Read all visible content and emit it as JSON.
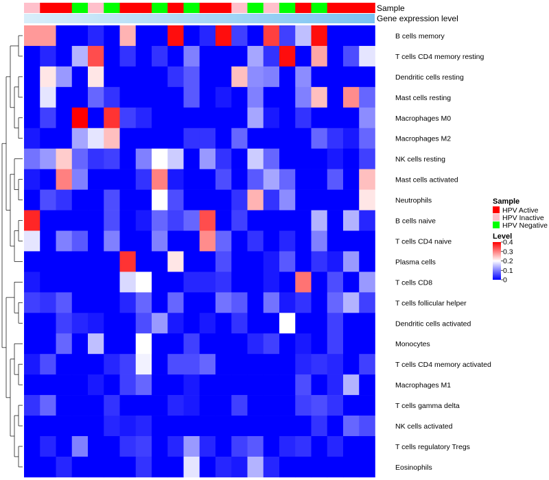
{
  "chart_data": {
    "type": "heatmap",
    "title": "",
    "rows": [
      "B cells memory",
      "T cells CD4 memory resting",
      "Dendritic cells resting",
      "Mast cells resting",
      "Macrophages M0",
      "Macrophages M2",
      "NK cells resting",
      "Mast cells activated",
      "Neutrophils",
      "B cells naive",
      "T cells CD4 naive",
      "Plasma cells",
      "T cells CD8",
      "T cells follicular helper",
      "Dendritic cells activated",
      "Monocytes",
      "T cells CD4 memory activated",
      "Macrophages M1",
      "T cells gamma delta",
      "NK cells activated",
      "T cells regulatory  Tregs",
      "Eosinophils"
    ],
    "columns": 22,
    "annotation_tracks": {
      "sample_label": "Sample",
      "gene_label": "Gene expression level",
      "sample": [
        "HPV Inactive",
        "HPV Active",
        "HPV Active",
        "HPV Negative",
        "HPV Inactive",
        "HPV Negative",
        "HPV Active",
        "HPV Active",
        "HPV Negative",
        "HPV Active",
        "HPV Negative",
        "HPV Active",
        "HPV Active",
        "HPV Inactive",
        "HPV Negative",
        "HPV Inactive",
        "HPV Negative",
        "HPV Active",
        "HPV Negative",
        "HPV Active",
        "HPV Active",
        "HPV Active"
      ],
      "gene_color_start": "#d9eefa",
      "gene_color_end": "#79c2f2"
    },
    "legend": {
      "sample_title": "Sample",
      "sample_entries": [
        {
          "label": "HPV Active",
          "color": "#ff0000"
        },
        {
          "label": "HPV Inactive",
          "color": "#ffc0cb"
        },
        {
          "label": "HPV Negative",
          "color": "#00ff00"
        }
      ],
      "level_title": "Level",
      "level_ticks": [
        "0.4",
        "0.3",
        "0.2",
        "0.1",
        "0"
      ],
      "level_range": [
        0,
        0.4
      ],
      "placement": "right"
    },
    "colors": {
      "low": "#0000ff",
      "mid": "#ffffff",
      "high": "#ff0000"
    },
    "values": [
      [
        0.28,
        0.28,
        0.0,
        0.0,
        0.03,
        0.0,
        0.26,
        0.0,
        0.0,
        0.39,
        0.0,
        0.03,
        0.39,
        0.05,
        0.0,
        0.35,
        0.05,
        0.15,
        0.39,
        0.0,
        0.0,
        0.0
      ],
      [
        0.0,
        0.03,
        0.0,
        0.14,
        0.34,
        0.0,
        0.04,
        0.0,
        0.04,
        0.0,
        0.1,
        0.0,
        0.0,
        0.0,
        0.13,
        0.04,
        0.39,
        0.0,
        0.27,
        0.0,
        0.06,
        0.18
      ],
      [
        0.0,
        0.22,
        0.12,
        0.0,
        0.22,
        0.0,
        0.0,
        0.0,
        0.0,
        0.04,
        0.07,
        0.0,
        0.0,
        0.25,
        0.11,
        0.1,
        0.0,
        0.11,
        0.0,
        0.0,
        0.0,
        0.0
      ],
      [
        0.0,
        0.18,
        0.0,
        0.0,
        0.08,
        0.04,
        0.0,
        0.0,
        0.0,
        0.0,
        0.07,
        0.0,
        0.02,
        0.0,
        0.1,
        0.0,
        0.0,
        0.1,
        0.25,
        0.0,
        0.29,
        0.08
      ],
      [
        0.0,
        0.05,
        0.0,
        0.4,
        0.0,
        0.36,
        0.05,
        0.03,
        0.0,
        0.0,
        0.0,
        0.0,
        0.0,
        0.0,
        0.13,
        0.02,
        0.0,
        0.04,
        0.0,
        0.0,
        0.0,
        0.11
      ],
      [
        0.02,
        0.0,
        0.0,
        0.13,
        0.18,
        0.25,
        0.0,
        0.0,
        0.0,
        0.0,
        0.04,
        0.04,
        0.0,
        0.08,
        0.0,
        0.0,
        0.0,
        0.0,
        0.08,
        0.04,
        0.02,
        0.08
      ],
      [
        0.09,
        0.12,
        0.24,
        0.08,
        0.04,
        0.05,
        0.0,
        0.1,
        0.2,
        0.16,
        0.0,
        0.12,
        0.04,
        0.0,
        0.16,
        0.08,
        0.0,
        0.0,
        0.0,
        0.02,
        0.0,
        0.05
      ],
      [
        0.02,
        0.0,
        0.3,
        0.1,
        0.0,
        0.0,
        0.0,
        0.04,
        0.3,
        0.02,
        0.0,
        0.0,
        0.06,
        0.0,
        0.07,
        0.13,
        0.08,
        0.0,
        0.0,
        0.07,
        0.0,
        0.25
      ],
      [
        0.0,
        0.06,
        0.04,
        0.0,
        0.0,
        0.06,
        0.0,
        0.0,
        0.2,
        0.06,
        0.0,
        0.0,
        0.0,
        0.04,
        0.26,
        0.04,
        0.11,
        0.0,
        0.0,
        0.0,
        0.0,
        0.22
      ],
      [
        0.37,
        0.0,
        0.0,
        0.0,
        0.0,
        0.06,
        0.0,
        0.02,
        0.08,
        0.05,
        0.08,
        0.34,
        0.0,
        0.05,
        0.0,
        0.0,
        0.0,
        0.0,
        0.14,
        0.0,
        0.14,
        0.03
      ],
      [
        0.18,
        0.0,
        0.1,
        0.07,
        0.0,
        0.1,
        0.0,
        0.0,
        0.1,
        0.0,
        0.0,
        0.29,
        0.08,
        0.0,
        0.04,
        0.0,
        0.03,
        0.0,
        0.1,
        0.0,
        0.0,
        0.0
      ],
      [
        0.0,
        0.0,
        0.0,
        0.0,
        0.0,
        0.0,
        0.36,
        0.0,
        0.0,
        0.22,
        0.0,
        0.0,
        0.06,
        0.0,
        0.0,
        0.02,
        0.07,
        0.0,
        0.04,
        0.02,
        0.12,
        0.0
      ],
      [
        0.02,
        0.0,
        0.0,
        0.0,
        0.0,
        0.0,
        0.17,
        0.2,
        0.0,
        0.0,
        0.03,
        0.03,
        0.04,
        0.0,
        0.0,
        0.02,
        0.0,
        0.31,
        0.0,
        0.06,
        0.0,
        0.12
      ],
      [
        0.05,
        0.04,
        0.07,
        0.0,
        0.0,
        0.0,
        0.03,
        0.08,
        0.0,
        0.08,
        0.0,
        0.0,
        0.09,
        0.07,
        0.0,
        0.09,
        0.02,
        0.04,
        0.0,
        0.08,
        0.14,
        0.05
      ],
      [
        0.0,
        0.0,
        0.05,
        0.03,
        0.02,
        0.0,
        0.0,
        0.06,
        0.12,
        0.02,
        0.0,
        0.02,
        0.0,
        0.04,
        0.0,
        0.0,
        0.2,
        0.0,
        0.0,
        0.05,
        0.0,
        0.0
      ],
      [
        0.0,
        0.0,
        0.08,
        0.0,
        0.15,
        0.0,
        0.0,
        0.2,
        0.0,
        0.0,
        0.05,
        0.0,
        0.0,
        0.0,
        0.03,
        0.05,
        0.0,
        0.02,
        0.0,
        0.05,
        0.0,
        0.0
      ],
      [
        0.02,
        0.06,
        0.0,
        0.0,
        0.0,
        0.03,
        0.05,
        0.19,
        0.0,
        0.06,
        0.06,
        0.08,
        0.0,
        0.0,
        0.0,
        0.0,
        0.0,
        0.03,
        0.04,
        0.03,
        0.0,
        0.05
      ],
      [
        0.0,
        0.0,
        0.0,
        0.0,
        0.02,
        0.0,
        0.05,
        0.08,
        0.0,
        0.0,
        0.02,
        0.0,
        0.0,
        0.0,
        0.0,
        0.0,
        0.0,
        0.06,
        0.0,
        0.03,
        0.14,
        0.0
      ],
      [
        0.04,
        0.08,
        0.0,
        0.0,
        0.0,
        0.04,
        0.0,
        0.0,
        0.0,
        0.03,
        0.02,
        0.0,
        0.0,
        0.05,
        0.0,
        0.0,
        0.0,
        0.05,
        0.06,
        0.04,
        0.0,
        0.0
      ],
      [
        0.0,
        0.0,
        0.0,
        0.0,
        0.0,
        0.03,
        0.02,
        0.03,
        0.0,
        0.0,
        0.0,
        0.0,
        0.0,
        0.0,
        0.0,
        0.0,
        0.0,
        0.0,
        0.04,
        0.0,
        0.08,
        0.06
      ],
      [
        0.0,
        0.03,
        0.0,
        0.1,
        0.0,
        0.0,
        0.04,
        0.05,
        0.0,
        0.03,
        0.12,
        0.03,
        0.0,
        0.05,
        0.07,
        0.0,
        0.03,
        0.04,
        0.0,
        0.03,
        0.0,
        0.0
      ],
      [
        0.0,
        0.0,
        0.03,
        0.0,
        0.0,
        0.0,
        0.0,
        0.04,
        0.0,
        0.0,
        0.18,
        0.0,
        0.03,
        0.02,
        0.14,
        0.03,
        0.0,
        0.0,
        0.0,
        0.0,
        0.0,
        0.0
      ]
    ]
  }
}
